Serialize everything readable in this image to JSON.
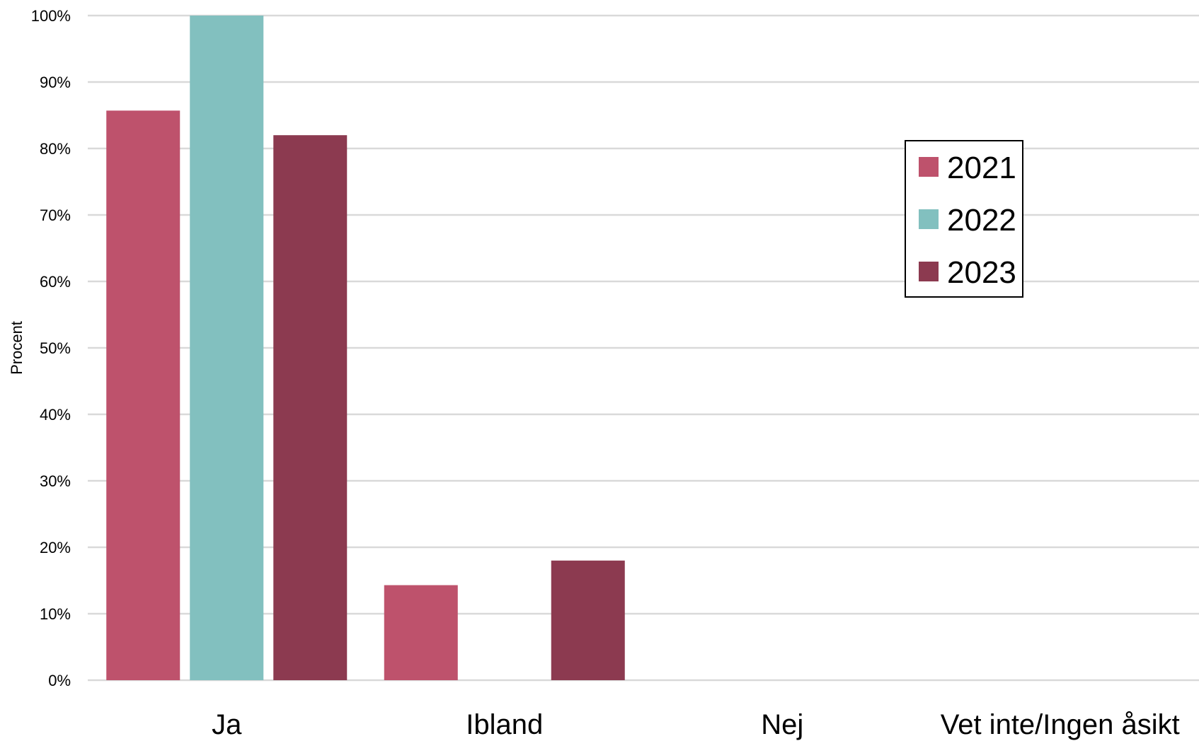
{
  "chart_data": {
    "type": "bar",
    "ylabel": "Procent",
    "ylim": [
      0,
      100
    ],
    "yticks": [
      "0%",
      "10%",
      "20%",
      "30%",
      "40%",
      "50%",
      "60%",
      "70%",
      "80%",
      "90%",
      "100%"
    ],
    "categories": [
      "Ja",
      "Ibland",
      "Nej",
      "Vet inte/Ingen åsikt"
    ],
    "series": [
      {
        "name": "2021",
        "color": "#be526c",
        "values": [
          85.7,
          14.3,
          0,
          0
        ]
      },
      {
        "name": "2022",
        "color": "#82c0bf",
        "values": [
          100,
          0,
          0,
          0
        ]
      },
      {
        "name": "2023",
        "color": "#8c3a50",
        "values": [
          82,
          18,
          0,
          0
        ]
      }
    ],
    "grid": true,
    "legend_position": "right"
  }
}
